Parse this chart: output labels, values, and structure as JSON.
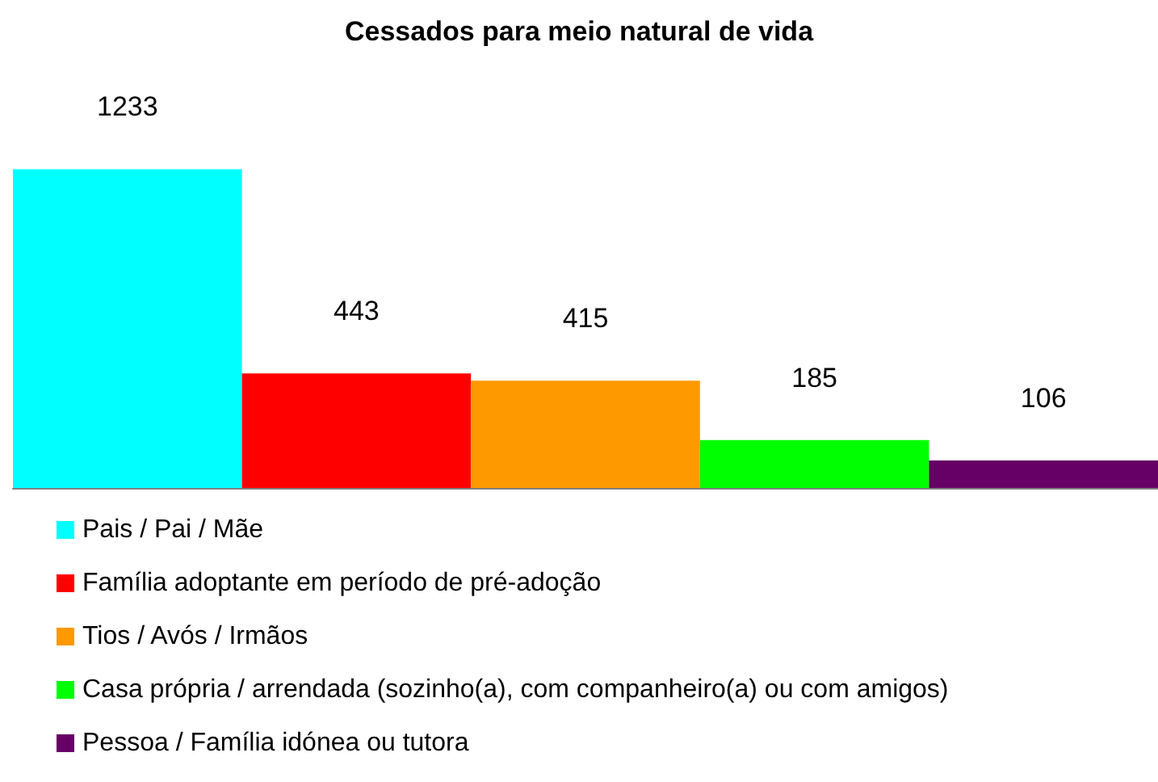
{
  "chart_data": {
    "type": "bar",
    "title": "Cessados para meio natural de vida",
    "categories": [
      null,
      null,
      null,
      null,
      null
    ],
    "series": [
      {
        "name": "Pais / Pai / Mãe",
        "color": "#00ffff",
        "values": [
          1233,
          null,
          null,
          null,
          null
        ]
      },
      {
        "name": "Família adoptante em período de pré-adoção",
        "color": "#ff0000",
        "values": [
          null,
          443,
          null,
          null,
          null
        ]
      },
      {
        "name": "Tios / Avós / Irmãos",
        "color": "#ff9900",
        "values": [
          null,
          null,
          415,
          null,
          null
        ]
      },
      {
        "name": "Casa própria / arrendada (sozinho(a), com companheiro(a) ou com amigos)",
        "color": "#00ff00",
        "values": [
          null,
          null,
          null,
          185,
          null
        ]
      },
      {
        "name": "Pessoa / Família idónea ou tutora",
        "color": "#660066",
        "values": [
          null,
          null,
          null,
          null,
          106
        ]
      }
    ],
    "data_labels": true,
    "stacked": true,
    "legend": "bottom",
    "grid": false
  }
}
